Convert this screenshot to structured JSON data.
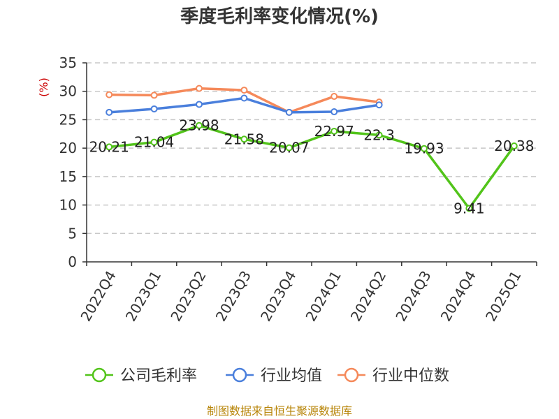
{
  "chart_data": {
    "type": "line",
    "title": "季度毛利率变化情况(%)",
    "ylabel": "(%)",
    "xlabel": "",
    "ylim": [
      0,
      35
    ],
    "yticks": [
      0,
      5,
      10,
      15,
      20,
      25,
      30,
      35
    ],
    "categories": [
      "2022Q4",
      "2023Q1",
      "2023Q2",
      "2023Q3",
      "2023Q4",
      "2024Q1",
      "2024Q2",
      "2024Q3",
      "2024Q4",
      "2025Q1"
    ],
    "grid": "horizontal dashed",
    "legend_position": "bottom",
    "series": [
      {
        "name": "公司毛利率",
        "color": "#52c41a",
        "values": [
          20.21,
          21.04,
          23.98,
          21.58,
          20.07,
          22.97,
          22.3,
          19.93,
          9.41,
          20.38
        ],
        "labels": [
          "20.21",
          "21.04",
          "23.98",
          "21.58",
          "20.07",
          "22.97",
          "22.3",
          "19.93",
          "9.41",
          "20.38"
        ]
      },
      {
        "name": "行业均值",
        "color": "#4a7fdc",
        "values": [
          26.3,
          26.9,
          27.7,
          28.8,
          26.3,
          26.4,
          27.6,
          null,
          null,
          null
        ]
      },
      {
        "name": "行业中位数",
        "color": "#f5895a",
        "values": [
          29.4,
          29.3,
          30.5,
          30.2,
          26.3,
          29.1,
          28.1,
          null,
          null,
          null
        ]
      }
    ]
  },
  "source_text": "制图数据来自恒生聚源数据库"
}
